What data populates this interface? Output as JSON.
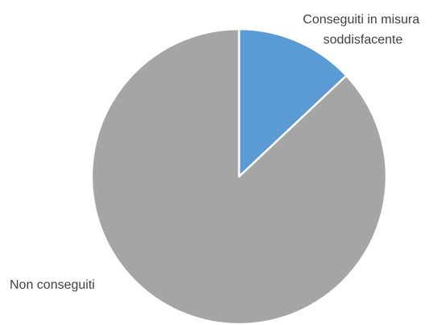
{
  "chart_data": {
    "type": "pie",
    "slices": [
      {
        "label_lines": [
          "Conseguiti in misura",
          "soddisfacente"
        ],
        "value": 13,
        "color": "#5B9BD5"
      },
      {
        "label_lines": [
          "Non conseguiti"
        ],
        "value": 87,
        "color": "#A5A5A5"
      }
    ],
    "start_angle": "12 o'clock",
    "direction": "clockwise",
    "legend": "none",
    "slice_border_color": "#FFFFFF"
  }
}
